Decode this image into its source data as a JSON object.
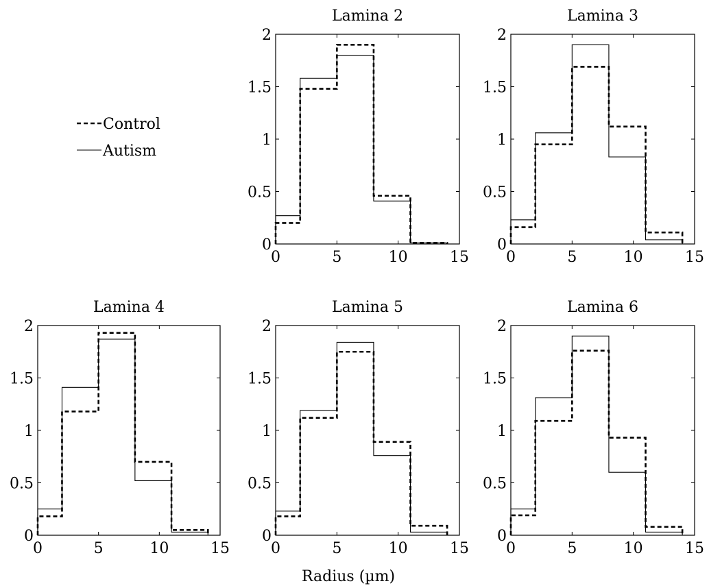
{
  "figure": {
    "xlabel": "Radius (µm)"
  },
  "legend": {
    "items": [
      {
        "label": "Control",
        "style": "dashed"
      },
      {
        "label": "Autism",
        "style": "solid"
      }
    ]
  },
  "chart_data": [
    {
      "type": "line",
      "step": true,
      "title": "Lamina 2",
      "bin_edges": [
        0,
        2,
        5,
        8,
        11,
        14
      ],
      "xlim": [
        0,
        15
      ],
      "ylim": [
        0,
        2
      ],
      "xticks": [
        0,
        5,
        10,
        15
      ],
      "yticks": [
        0,
        0.5,
        1,
        1.5,
        2
      ],
      "grid": false,
      "series": [
        {
          "name": "Control",
          "values": [
            0.2,
            1.48,
            1.9,
            0.46,
            0.01
          ]
        },
        {
          "name": "Autism",
          "values": [
            0.27,
            1.58,
            1.8,
            0.41,
            0.01
          ]
        }
      ]
    },
    {
      "type": "line",
      "step": true,
      "title": "Lamina 3",
      "bin_edges": [
        0,
        2,
        5,
        8,
        11,
        14
      ],
      "xlim": [
        0,
        15
      ],
      "ylim": [
        0,
        2
      ],
      "xticks": [
        0,
        5,
        10,
        15
      ],
      "yticks": [
        0,
        0.5,
        1,
        1.5,
        2
      ],
      "grid": false,
      "series": [
        {
          "name": "Control",
          "values": [
            0.16,
            0.95,
            1.69,
            1.12,
            0.11
          ]
        },
        {
          "name": "Autism",
          "values": [
            0.23,
            1.06,
            1.9,
            0.83,
            0.04
          ]
        }
      ]
    },
    {
      "type": "line",
      "step": true,
      "title": "Lamina 4",
      "bin_edges": [
        0,
        2,
        5,
        8,
        11,
        14
      ],
      "xlim": [
        0,
        15
      ],
      "ylim": [
        0,
        2
      ],
      "xticks": [
        0,
        5,
        10,
        15
      ],
      "yticks": [
        0,
        0.5,
        1,
        1.5,
        2
      ],
      "grid": false,
      "series": [
        {
          "name": "Control",
          "values": [
            0.18,
            1.18,
            1.93,
            0.7,
            0.05
          ]
        },
        {
          "name": "Autism",
          "values": [
            0.25,
            1.41,
            1.87,
            0.52,
            0.03
          ]
        }
      ]
    },
    {
      "type": "line",
      "step": true,
      "title": "Lamina 5",
      "bin_edges": [
        0,
        2,
        5,
        8,
        11,
        14
      ],
      "xlim": [
        0,
        15
      ],
      "ylim": [
        0,
        2
      ],
      "xticks": [
        0,
        5,
        10,
        15
      ],
      "yticks": [
        0,
        0.5,
        1,
        1.5,
        2
      ],
      "grid": false,
      "series": [
        {
          "name": "Control",
          "values": [
            0.18,
            1.12,
            1.75,
            0.89,
            0.09
          ]
        },
        {
          "name": "Autism",
          "values": [
            0.23,
            1.19,
            1.84,
            0.76,
            0.03
          ]
        }
      ]
    },
    {
      "type": "line",
      "step": true,
      "title": "Lamina 6",
      "bin_edges": [
        0,
        2,
        5,
        8,
        11,
        14
      ],
      "xlim": [
        0,
        15
      ],
      "ylim": [
        0,
        2
      ],
      "xticks": [
        0,
        5,
        10,
        15
      ],
      "yticks": [
        0,
        0.5,
        1,
        1.5,
        2
      ],
      "grid": false,
      "series": [
        {
          "name": "Control",
          "values": [
            0.19,
            1.09,
            1.76,
            0.93,
            0.08
          ]
        },
        {
          "name": "Autism",
          "values": [
            0.25,
            1.31,
            1.9,
            0.6,
            0.03
          ]
        }
      ]
    }
  ]
}
